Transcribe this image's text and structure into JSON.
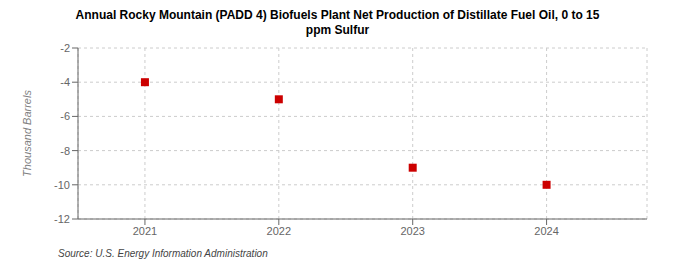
{
  "chart_data": {
    "type": "scatter",
    "title": "Annual Rocky Mountain (PADD 4) Biofuels Plant Net Production of Distillate Fuel Oil, 0 to 15\nppm Sulfur",
    "ylabel": "Thousand Barrels",
    "annotations": [
      "Source: U.S. Energy Information Administration"
    ],
    "x": [
      2021,
      2022,
      2023,
      2024
    ],
    "values": [
      -4.0,
      -5.0,
      -9.0,
      -10.0
    ],
    "color": "#cc0000",
    "marker": "square",
    "xlim": [
      2020.5,
      2024.75
    ],
    "xticks": [
      2021,
      2022,
      2023,
      2024
    ],
    "ylim": [
      -12,
      -2
    ],
    "yticks": [
      -12,
      -10,
      -8,
      -6,
      -4,
      -2
    ],
    "grid": true
  }
}
